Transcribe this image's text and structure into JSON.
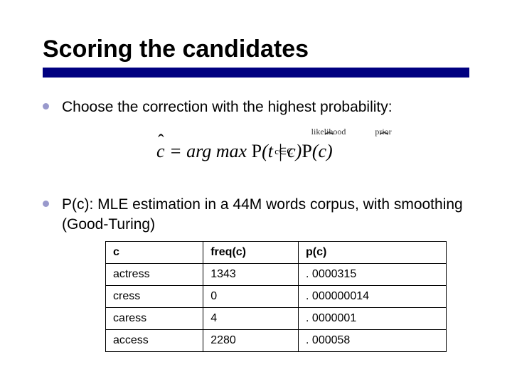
{
  "title": "Scoring the candidates",
  "title_underline_color": "#000080",
  "bullets": [
    "Choose the correction with the highest probability:",
    "P(c): MLE estimation in a 44M words corpus, with smoothing (Good-Turing)"
  ],
  "formula": {
    "display": "ĉ = argmax P(t | c) P(c)",
    "subscript": "c∈C",
    "annotations": {
      "likelihood": "likelihood",
      "prior": "prior"
    }
  },
  "table": {
    "columns": [
      "c",
      "freq(c)",
      "p(c)"
    ],
    "rows": [
      [
        "actress",
        "1343",
        ". 0000315"
      ],
      [
        "cress",
        "0",
        ". 000000014"
      ],
      [
        "caress",
        "4",
        ". 0000001"
      ],
      [
        "access",
        "2280",
        ". 000058"
      ]
    ],
    "border_color": "#000000",
    "header_fontweight": "bold",
    "cell_fontsize": 16
  },
  "colors": {
    "background": "#ffffff",
    "text": "#000000",
    "bullet_dot": "#9999cc",
    "title_bar": "#000080"
  },
  "fonts": {
    "title_size": 34,
    "body_size": 21,
    "formula_family": "Times New Roman"
  }
}
